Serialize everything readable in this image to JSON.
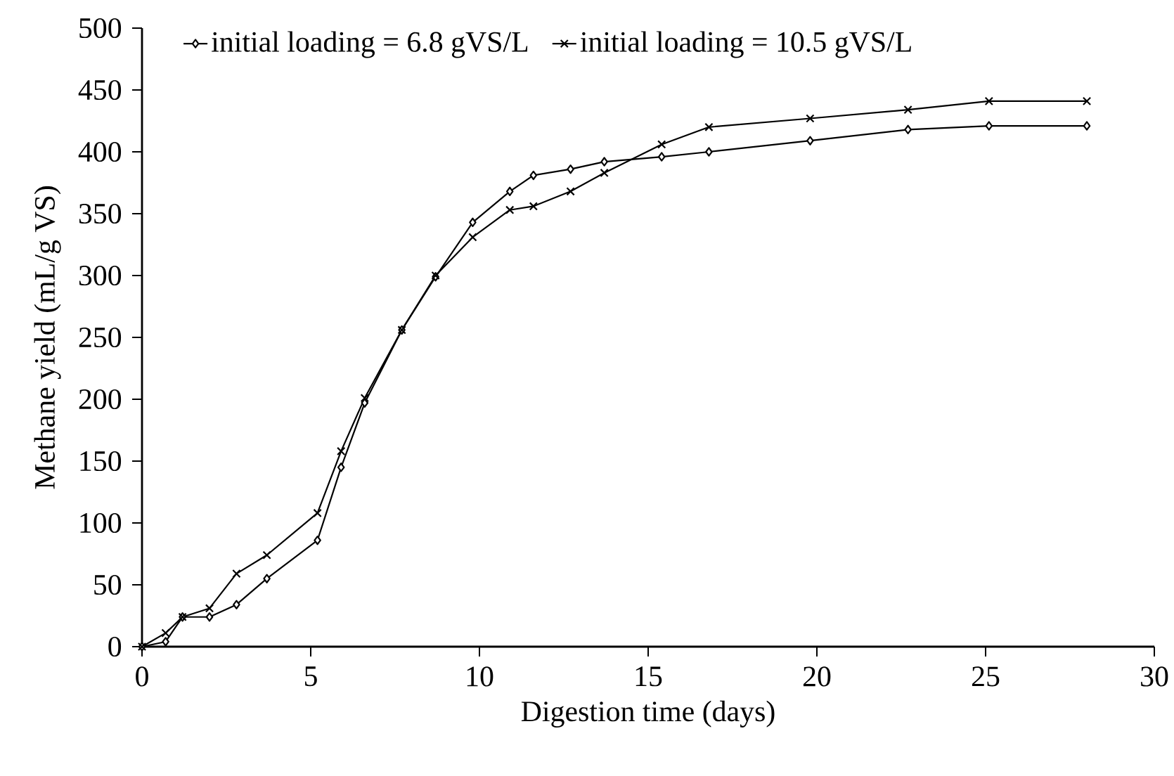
{
  "chart_data": {
    "type": "line",
    "xlabel": "Digestion time (days)",
    "ylabel": "Methane yield (mL/g VS)",
    "xlim": [
      0,
      30
    ],
    "xticks": [
      0,
      5,
      10,
      15,
      20,
      25,
      30
    ],
    "ylim": [
      0,
      500
    ],
    "yticks": [
      0,
      50,
      100,
      150,
      200,
      250,
      300,
      350,
      400,
      450,
      500
    ],
    "grid": false,
    "legend": "top",
    "line_style": "solid",
    "series": [
      {
        "name": "initial loading = 6.8 gVS/L",
        "color": "#000000",
        "marker": "diamond",
        "x": [
          0,
          0.7,
          1.2,
          2,
          2.8,
          3.7,
          5.2,
          5.9,
          6.6,
          7.7,
          8.7,
          9.8,
          10.9,
          11.6,
          12.7,
          13.7,
          15.4,
          16.8,
          19.8,
          22.7,
          25.1,
          28.0
        ],
        "values": [
          0,
          4,
          24,
          24,
          34,
          55,
          86,
          145,
          197,
          256,
          299,
          343,
          368,
          381,
          386,
          392,
          396,
          400,
          409,
          418,
          421,
          421
        ]
      },
      {
        "name": "initial loading = 10.5 gVS/L",
        "color": "#000000",
        "marker": "cross",
        "x": [
          0,
          0.7,
          1.2,
          2,
          2.8,
          3.7,
          5.2,
          5.9,
          6.6,
          7.7,
          8.7,
          9.8,
          10.9,
          11.6,
          12.7,
          13.7,
          15.4,
          16.8,
          19.8,
          22.7,
          25.1,
          28.0
        ],
        "values": [
          0,
          11,
          24,
          31,
          59,
          74,
          108,
          158,
          201,
          256,
          300,
          331,
          353,
          356,
          368,
          383,
          406,
          420,
          427,
          434,
          441,
          441
        ]
      }
    ]
  }
}
